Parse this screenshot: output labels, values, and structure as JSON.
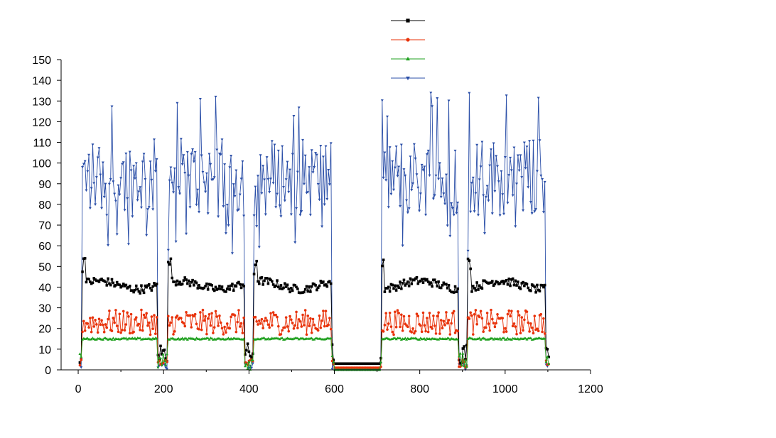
{
  "chart_data": {
    "type": "line",
    "title": "",
    "xlabel": "",
    "ylabel": "",
    "xlim": [
      -40,
      1200
    ],
    "ylim": [
      0,
      150
    ],
    "xticks": [
      0,
      200,
      400,
      600,
      800,
      1000,
      1200
    ],
    "yticks": [
      0,
      10,
      20,
      30,
      40,
      50,
      60,
      70,
      80,
      90,
      100,
      110,
      120,
      130,
      140,
      150
    ],
    "x_tick_labels": [
      "0",
      "200",
      "400",
      "600",
      "800",
      "1000",
      "1200"
    ],
    "y_tick_labels": [
      "0",
      "10",
      "20",
      "30",
      "40",
      "50",
      "60",
      "70",
      "80",
      "90",
      "100",
      "110",
      "120",
      "130",
      "140",
      "150"
    ],
    "grid": false,
    "legend_position": "top-center",
    "segments": [
      {
        "start": 10,
        "end": 186
      },
      {
        "start": 210,
        "end": 390
      },
      {
        "start": 412,
        "end": 594
      },
      {
        "start": 710,
        "end": 890
      },
      {
        "start": 912,
        "end": 1094
      }
    ],
    "series": [
      {
        "label": "",
        "color": "#000000",
        "marker": "square",
        "active_level": 41,
        "active_range": [
          35,
          54
        ],
        "idle_level": 3
      },
      {
        "label": "",
        "color": "#e8320a",
        "marker": "circle",
        "active_level": 23,
        "active_range": [
          16,
          30
        ],
        "idle_level": 1
      },
      {
        "label": "",
        "color": "#1fa01f",
        "marker": "triangle-up",
        "active_level": 15,
        "active_range": [
          14,
          16
        ],
        "idle_level": 0
      },
      {
        "label": "",
        "color": "#2b4fa8",
        "marker": "triangle-down",
        "active_level": 93,
        "active_range": [
          56,
          134
        ],
        "idle_level": 0
      }
    ]
  }
}
